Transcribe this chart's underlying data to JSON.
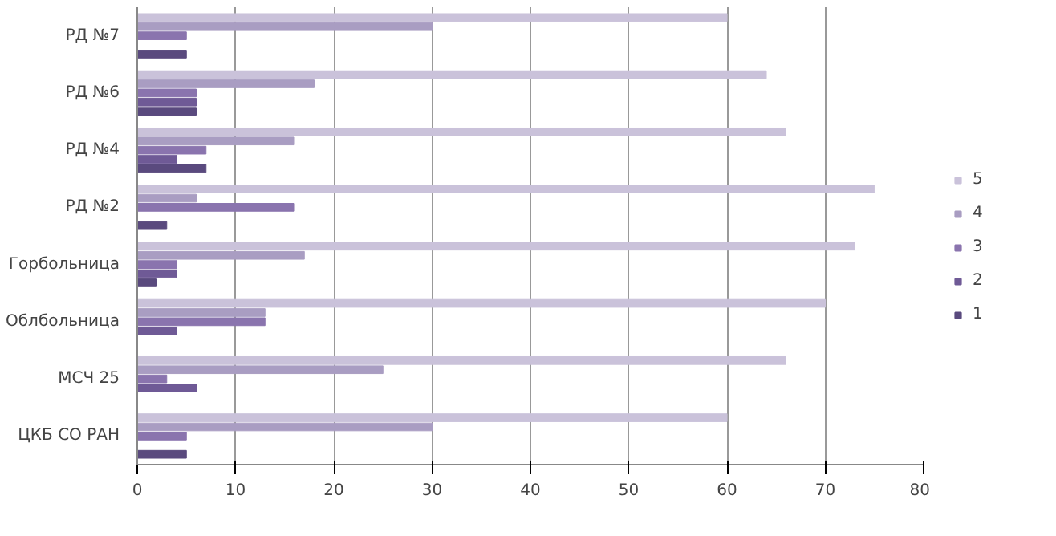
{
  "chart_data": {
    "type": "bar",
    "orientation": "horizontal",
    "categories": [
      "РД №7",
      "РД №6",
      "РД №4",
      "РД №2",
      "Горбольница",
      "Облбольница",
      "МСЧ 25",
      "ЦКБ СО РАН"
    ],
    "series": [
      {
        "name": "1",
        "color": "#5a4a7e",
        "values": [
          5,
          6,
          7,
          3,
          2,
          0,
          0,
          5
        ]
      },
      {
        "name": "2",
        "color": "#6f5a96",
        "values": [
          0,
          6,
          4,
          0,
          4,
          4,
          6,
          0
        ]
      },
      {
        "name": "3",
        "color": "#8a74ae",
        "values": [
          5,
          6,
          7,
          16,
          4,
          13,
          3,
          5
        ]
      },
      {
        "name": "4",
        "color": "#a99dc2",
        "values": [
          30,
          18,
          16,
          6,
          17,
          13,
          25,
          30
        ]
      },
      {
        "name": "5",
        "color": "#cac2da",
        "values": [
          60,
          64,
          66,
          75,
          73,
          70,
          66,
          60
        ]
      }
    ],
    "xlim": [
      0,
      80
    ],
    "xticks": [
      0,
      10,
      20,
      30,
      40,
      50,
      60,
      70,
      80
    ],
    "grid": "x",
    "legend": "right"
  }
}
